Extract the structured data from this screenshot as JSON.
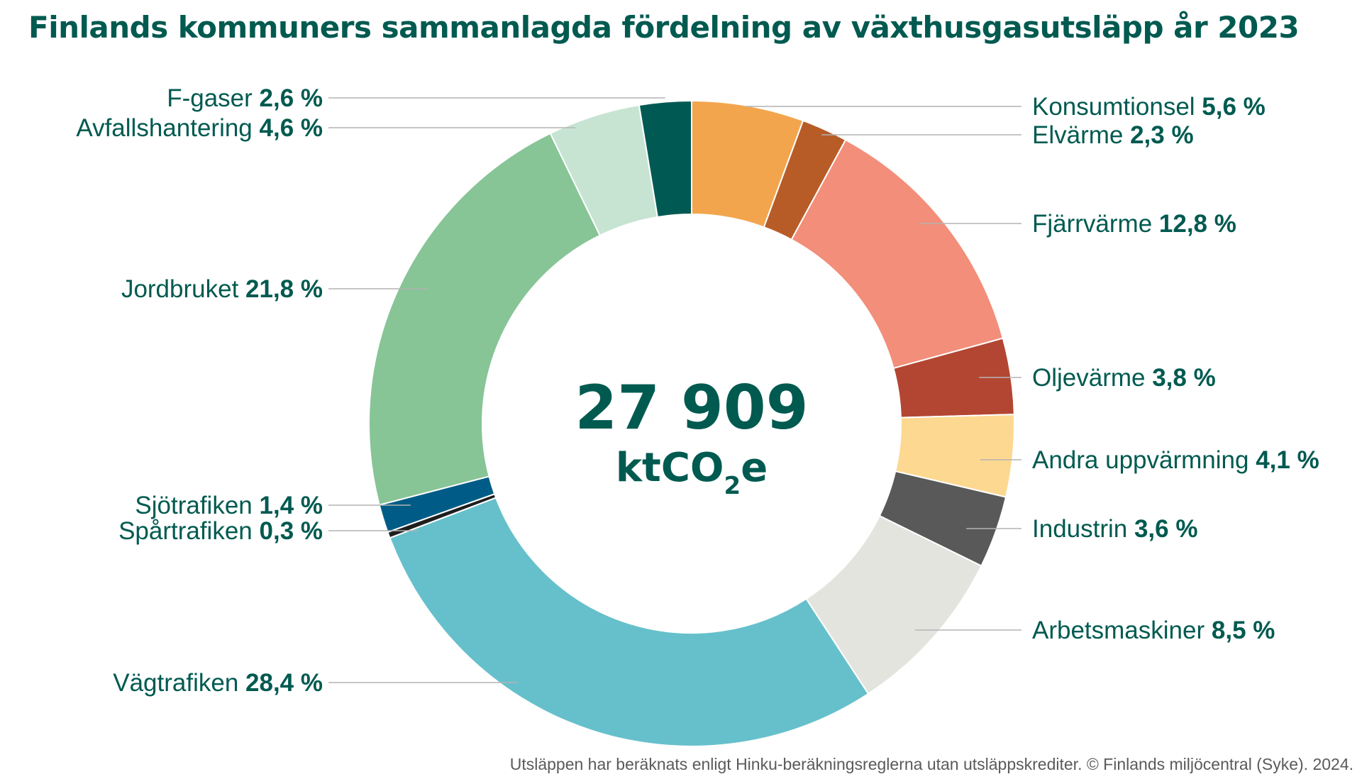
{
  "title": "Finlands kommuners sammanlagda fördelning av växthusgasutsläpp år 2023",
  "center": {
    "value": "27 909",
    "unit_prefix": "ktCO",
    "unit_sub": "2",
    "unit_suffix": "e"
  },
  "footnote": "Utsläppen har beräknats enligt Hinku-beräkningsreglerna utan utsläppskrediter. © Finlands miljöcentral (Syke). 2024.",
  "chart_data": {
    "type": "pie",
    "donut": true,
    "total": 27909,
    "unit": "ktCO2e",
    "slices": [
      {
        "label": "Konsumtionsel",
        "value": 5.6,
        "display": "5,6 %",
        "color": "#f3a54d",
        "side": "right"
      },
      {
        "label": "Elvärme",
        "value": 2.3,
        "display": "2,3 %",
        "color": "#b85c27",
        "side": "right"
      },
      {
        "label": "Fjärrvärme",
        "value": 12.8,
        "display": "12,8 %",
        "color": "#f28e79",
        "side": "right"
      },
      {
        "label": "Oljevärme",
        "value": 3.8,
        "display": "3,8 %",
        "color": "#b34632",
        "side": "right"
      },
      {
        "label": "Andra uppvärmning",
        "value": 4.1,
        "display": "4,1 %",
        "color": "#fdd891",
        "side": "right"
      },
      {
        "label": "Industrin",
        "value": 3.6,
        "display": "3,6 %",
        "color": "#595959",
        "side": "right"
      },
      {
        "label": "Arbetsmaskiner",
        "value": 8.5,
        "display": "8,5 %",
        "color": "#e4e4df",
        "side": "right"
      },
      {
        "label": "Vägtrafiken",
        "value": 28.4,
        "display": "28,4 %",
        "color": "#66c0cb",
        "side": "left"
      },
      {
        "label": "Spårtrafiken",
        "value": 0.3,
        "display": "0,3 %",
        "color": "#1e1e1e",
        "side": "left"
      },
      {
        "label": "Sjötrafiken",
        "value": 1.4,
        "display": "1,4 %",
        "color": "#005c86",
        "side": "left"
      },
      {
        "label": "Jordbruket",
        "value": 21.8,
        "display": "21,8 %",
        "color": "#87c496",
        "side": "left"
      },
      {
        "label": "Avfallshantering",
        "value": 4.6,
        "display": "4,6 %",
        "color": "#c7e4d3",
        "side": "left"
      },
      {
        "label": "F-gaser",
        "value": 2.6,
        "display": "2,6 %",
        "color": "#005a53",
        "side": "left"
      }
    ]
  }
}
